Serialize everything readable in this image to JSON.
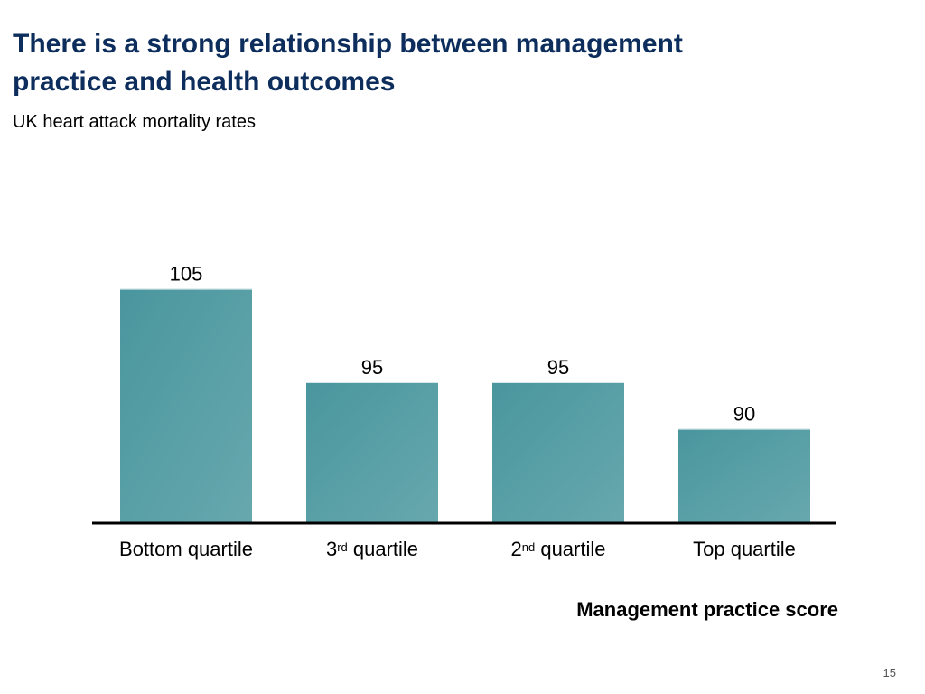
{
  "slide": {
    "title_line1": "There is a strong relationship between management",
    "title_line2": "practice and health outcomes",
    "subtitle": "UK heart attack mortality rates",
    "page_number": "15"
  },
  "chart_data": {
    "type": "bar",
    "categories": [
      {
        "main": "Bottom quartile",
        "sup": "",
        "rest": ""
      },
      {
        "main": "3",
        "sup": "rd",
        "rest": " quartile"
      },
      {
        "main": "2",
        "sup": "nd",
        "rest": " quartile"
      },
      {
        "main": "Top quartile",
        "sup": "",
        "rest": ""
      }
    ],
    "values": [
      105,
      95,
      95,
      90
    ],
    "data_labels": [
      "105",
      "95",
      "95",
      "90"
    ],
    "xlabel": "Management practice score",
    "ylabel": "",
    "ylim": [
      0,
      110
    ],
    "grid": false,
    "legend": "none",
    "bar_color_start": "#4a969e",
    "bar_color_end": "#67a8ae",
    "axis_color": "#000000"
  }
}
